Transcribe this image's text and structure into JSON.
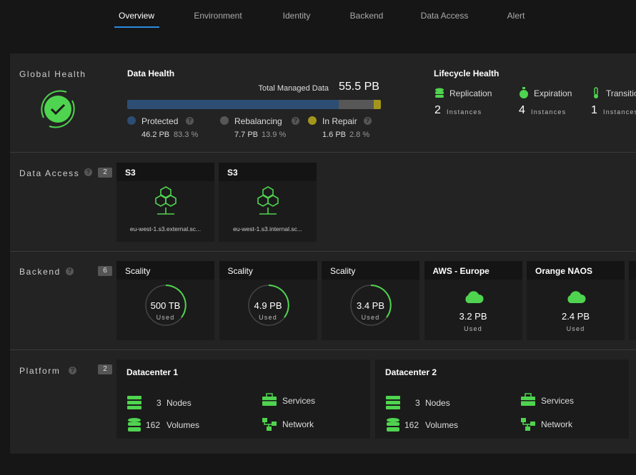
{
  "nav": {
    "tabs": [
      "Overview",
      "Environment",
      "Identity",
      "Backend",
      "Data Access",
      "Alert"
    ],
    "active": 0
  },
  "global_health": {
    "label": "Global Health"
  },
  "data_health": {
    "title": "Data Health",
    "total_label": "Total Managed Data",
    "total": "55.5 PB",
    "segments": [
      {
        "name": "Protected",
        "amount": "46.2 PB",
        "percent": 83.3,
        "percent_label": "83.3 %",
        "color": "#2d4d73"
      },
      {
        "name": "Rebalancing",
        "amount": "7.7 PB",
        "percent": 13.9,
        "percent_label": "13.9 %",
        "color": "#575757"
      },
      {
        "name": "In Repair",
        "amount": "1.6 PB",
        "percent": 2.8,
        "percent_label": "2.8 %",
        "color": "#a3961c"
      }
    ]
  },
  "lifecycle_health": {
    "title": "Lifecycle Health",
    "unit": "Instances",
    "items": [
      {
        "name": "Replication",
        "count": "2"
      },
      {
        "name": "Expiration",
        "count": "4"
      },
      {
        "name": "Transition",
        "count": "1"
      }
    ]
  },
  "data_access": {
    "label": "Data Access",
    "count": "2",
    "cards": [
      {
        "title": "S3",
        "endpoint": "eu-west-1.s3.external.sc..."
      },
      {
        "title": "S3",
        "endpoint": "eu-west-1.s3.internal.sc..."
      }
    ]
  },
  "backend": {
    "label": "Backend",
    "count": "6",
    "used": "Used",
    "cards": [
      {
        "title": "Scality",
        "amount": "500 TB"
      },
      {
        "title": "Scality",
        "amount": "4.9 PB"
      },
      {
        "title": "Scality",
        "amount": "3.4 PB"
      },
      {
        "title": "AWS - Europe",
        "amount": "3.2 PB"
      },
      {
        "title": "Orange NAOS",
        "amount": "2.4 PB"
      }
    ]
  },
  "platform": {
    "label": "Platform",
    "count": "2",
    "cards": [
      {
        "title": "Datacenter 1",
        "nodes": "3",
        "nodes_label": "Nodes",
        "volumes": "162",
        "volumes_label": "Volumes",
        "services": "Services",
        "network": "Network"
      },
      {
        "title": "Datacenter 2",
        "nodes": "3",
        "nodes_label": "Nodes",
        "volumes": "162",
        "volumes_label": "Volumes",
        "services": "Services",
        "network": "Network"
      }
    ]
  }
}
